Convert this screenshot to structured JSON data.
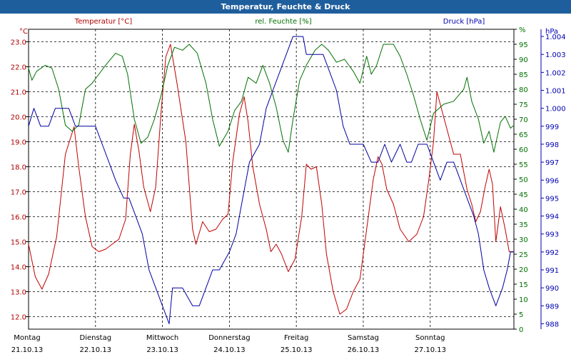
{
  "title": "Temperatur, Feuchte & Druck",
  "chart_data": {
    "type": "line",
    "title": "Temperatur, Feuchte & Druck",
    "x_days": [
      {
        "day": "Montag",
        "date": "21.10.13"
      },
      {
        "day": "Dienstag",
        "date": "22.10.13"
      },
      {
        "day": "Mittwoch",
        "date": "23.10.13"
      },
      {
        "day": "Donnerstag",
        "date": "24.10.13"
      },
      {
        "day": "Freitag",
        "date": "25.10.13"
      },
      {
        "day": "Samstag",
        "date": "26.10.13"
      },
      {
        "day": "Sonntag",
        "date": "27.10.13"
      }
    ],
    "xlim": [
      0,
      7.25
    ],
    "axes": {
      "temperature": {
        "label": "Temperatur [°C]",
        "unit": "°C",
        "ylim": [
          11.5,
          23.5
        ],
        "ticks": [
          "12.0",
          "13.0",
          "14.0",
          "15.0",
          "16.0",
          "17.0",
          "18.0",
          "19.0",
          "20.0",
          "21.0",
          "22.0",
          "23.0"
        ],
        "color": "#b00000"
      },
      "humidity": {
        "label": "rel. Feuchte [%]",
        "unit": "%",
        "ylim": [
          0,
          100
        ],
        "ticks": [
          "0",
          "5",
          "10",
          "15",
          "20",
          "25",
          "30",
          "35",
          "40",
          "45",
          "50",
          "55",
          "60",
          "65",
          "70",
          "75",
          "80",
          "85",
          "90",
          "95",
          "%"
        ],
        "color": "#007000"
      },
      "pressure": {
        "label": "Druck [hPa]",
        "unit": "hPa",
        "ylim": [
          987.7,
          1004.4
        ],
        "ticks": [
          "988",
          "989",
          "990",
          "991",
          "992",
          "993",
          "994",
          "995",
          "996",
          "997",
          "998",
          "999",
          "1.000",
          "1.001",
          "1.002",
          "1.003",
          "1.004"
        ],
        "color": "#0000b0"
      }
    },
    "series": [
      {
        "name": "Temperatur [°C]",
        "axis": "temperature",
        "color": "#c00000",
        "points": [
          [
            0,
            14.9
          ],
          [
            0.1,
            13.6
          ],
          [
            0.2,
            13.1
          ],
          [
            0.3,
            13.7
          ],
          [
            0.42,
            15.2
          ],
          [
            0.55,
            18.5
          ],
          [
            0.68,
            19.6
          ],
          [
            0.75,
            18.0
          ],
          [
            0.85,
            16.0
          ],
          [
            0.95,
            14.8
          ],
          [
            1.05,
            14.6
          ],
          [
            1.15,
            14.7
          ],
          [
            1.25,
            14.9
          ],
          [
            1.35,
            15.1
          ],
          [
            1.45,
            15.9
          ],
          [
            1.52,
            18.5
          ],
          [
            1.58,
            19.7
          ],
          [
            1.65,
            18.6
          ],
          [
            1.72,
            17.2
          ],
          [
            1.82,
            16.2
          ],
          [
            1.9,
            17.2
          ],
          [
            1.98,
            20.2
          ],
          [
            2.05,
            22.4
          ],
          [
            2.12,
            22.9
          ],
          [
            2.22,
            21.3
          ],
          [
            2.35,
            19.0
          ],
          [
            2.45,
            15.5
          ],
          [
            2.5,
            14.9
          ],
          [
            2.6,
            15.8
          ],
          [
            2.7,
            15.4
          ],
          [
            2.8,
            15.5
          ],
          [
            2.9,
            15.9
          ],
          [
            2.98,
            16.1
          ],
          [
            3.05,
            18.2
          ],
          [
            3.15,
            20.1
          ],
          [
            3.22,
            20.8
          ],
          [
            3.28,
            19.8
          ],
          [
            3.35,
            18.0
          ],
          [
            3.45,
            16.5
          ],
          [
            3.55,
            15.5
          ],
          [
            3.62,
            14.6
          ],
          [
            3.7,
            14.9
          ],
          [
            3.78,
            14.5
          ],
          [
            3.88,
            13.8
          ],
          [
            3.98,
            14.3
          ],
          [
            4.08,
            16.0
          ],
          [
            4.15,
            18.1
          ],
          [
            4.22,
            17.9
          ],
          [
            4.3,
            18.0
          ],
          [
            4.38,
            16.5
          ],
          [
            4.45,
            14.5
          ],
          [
            4.55,
            13.0
          ],
          [
            4.65,
            12.1
          ],
          [
            4.75,
            12.3
          ],
          [
            4.85,
            13.0
          ],
          [
            4.95,
            13.5
          ],
          [
            5.05,
            15.5
          ],
          [
            5.15,
            17.5
          ],
          [
            5.22,
            18.4
          ],
          [
            5.28,
            18.1
          ],
          [
            5.35,
            17.1
          ],
          [
            5.45,
            16.5
          ],
          [
            5.55,
            15.5
          ],
          [
            5.68,
            15.0
          ],
          [
            5.8,
            15.3
          ],
          [
            5.9,
            16.0
          ],
          [
            5.98,
            17.5
          ],
          [
            6.05,
            19.0
          ],
          [
            6.1,
            21.0
          ],
          [
            6.15,
            20.5
          ],
          [
            6.25,
            19.5
          ],
          [
            6.35,
            18.5
          ],
          [
            6.45,
            18.5
          ],
          [
            6.55,
            17.1
          ],
          [
            6.62,
            16.5
          ],
          [
            6.68,
            15.8
          ],
          [
            6.75,
            16.2
          ],
          [
            6.82,
            17.2
          ],
          [
            6.88,
            17.9
          ],
          [
            6.93,
            17.3
          ],
          [
            6.98,
            15.0
          ],
          [
            7.05,
            16.4
          ],
          [
            7.12,
            15.5
          ],
          [
            7.18,
            14.6
          ],
          [
            7.25,
            14.6
          ]
        ]
      },
      {
        "name": "rel. Feuchte [%]",
        "axis": "humidity",
        "color": "#007000",
        "points": [
          [
            0,
            87
          ],
          [
            0.05,
            83
          ],
          [
            0.12,
            86
          ],
          [
            0.25,
            88
          ],
          [
            0.35,
            87
          ],
          [
            0.45,
            80
          ],
          [
            0.55,
            68
          ],
          [
            0.65,
            66
          ],
          [
            0.75,
            68
          ],
          [
            0.85,
            80
          ],
          [
            0.95,
            82
          ],
          [
            1.05,
            85
          ],
          [
            1.15,
            88
          ],
          [
            1.3,
            92
          ],
          [
            1.4,
            91
          ],
          [
            1.48,
            85
          ],
          [
            1.58,
            70
          ],
          [
            1.68,
            62
          ],
          [
            1.78,
            64
          ],
          [
            1.88,
            70
          ],
          [
            1.98,
            78
          ],
          [
            2.08,
            88
          ],
          [
            2.18,
            94
          ],
          [
            2.3,
            93
          ],
          [
            2.4,
            95
          ],
          [
            2.52,
            92
          ],
          [
            2.65,
            82
          ],
          [
            2.75,
            70
          ],
          [
            2.85,
            61
          ],
          [
            2.98,
            66
          ],
          [
            3.08,
            73
          ],
          [
            3.18,
            76
          ],
          [
            3.28,
            84
          ],
          [
            3.4,
            82
          ],
          [
            3.5,
            88
          ],
          [
            3.6,
            82
          ],
          [
            3.7,
            74
          ],
          [
            3.8,
            63
          ],
          [
            3.88,
            59
          ],
          [
            3.95,
            70
          ],
          [
            4.05,
            83
          ],
          [
            4.15,
            88
          ],
          [
            4.28,
            93
          ],
          [
            4.38,
            95
          ],
          [
            4.48,
            93
          ],
          [
            4.6,
            89
          ],
          [
            4.72,
            90
          ],
          [
            4.85,
            86
          ],
          [
            4.95,
            82
          ],
          [
            5.05,
            91
          ],
          [
            5.12,
            85
          ],
          [
            5.2,
            88
          ],
          [
            5.3,
            95
          ],
          [
            5.45,
            95
          ],
          [
            5.55,
            91
          ],
          [
            5.65,
            85
          ],
          [
            5.75,
            78
          ],
          [
            5.85,
            70
          ],
          [
            5.95,
            63
          ],
          [
            6.05,
            72
          ],
          [
            6.2,
            75
          ],
          [
            6.35,
            76
          ],
          [
            6.5,
            80
          ],
          [
            6.55,
            84
          ],
          [
            6.62,
            76
          ],
          [
            6.72,
            70
          ],
          [
            6.8,
            62
          ],
          [
            6.88,
            66
          ],
          [
            6.95,
            59
          ],
          [
            7.05,
            69
          ],
          [
            7.12,
            71
          ],
          [
            7.2,
            67
          ],
          [
            7.25,
            68
          ]
        ]
      },
      {
        "name": "Druck [hPa]",
        "axis": "pressure",
        "color": "#0000a0",
        "points": [
          [
            0,
            999
          ],
          [
            0.08,
            1000
          ],
          [
            0.18,
            999
          ],
          [
            0.3,
            999
          ],
          [
            0.4,
            1000
          ],
          [
            0.6,
            1000
          ],
          [
            0.7,
            999
          ],
          [
            0.8,
            999
          ],
          [
            1,
            999
          ],
          [
            1.1,
            998
          ],
          [
            1.2,
            997
          ],
          [
            1.3,
            996
          ],
          [
            1.42,
            995
          ],
          [
            1.5,
            995
          ],
          [
            1.6,
            994
          ],
          [
            1.7,
            993
          ],
          [
            1.8,
            991
          ],
          [
            1.9,
            990
          ],
          [
            2,
            989
          ],
          [
            2.1,
            988
          ],
          [
            2.15,
            990
          ],
          [
            2.3,
            990
          ],
          [
            2.45,
            989
          ],
          [
            2.55,
            989
          ],
          [
            2.65,
            990
          ],
          [
            2.75,
            991
          ],
          [
            2.85,
            991
          ],
          [
            3,
            992
          ],
          [
            3.1,
            993
          ],
          [
            3.2,
            995
          ],
          [
            3.3,
            997
          ],
          [
            3.45,
            998
          ],
          [
            3.55,
            1000
          ],
          [
            3.65,
            1001
          ],
          [
            3.75,
            1002
          ],
          [
            3.85,
            1003
          ],
          [
            3.95,
            1004
          ],
          [
            4.1,
            1004
          ],
          [
            4.15,
            1003
          ],
          [
            4.25,
            1003
          ],
          [
            4.4,
            1003
          ],
          [
            4.5,
            1002
          ],
          [
            4.6,
            1001
          ],
          [
            4.7,
            999
          ],
          [
            4.8,
            998
          ],
          [
            5,
            998
          ],
          [
            5.12,
            997
          ],
          [
            5.22,
            997
          ],
          [
            5.32,
            998
          ],
          [
            5.42,
            997
          ],
          [
            5.55,
            998
          ],
          [
            5.65,
            997
          ],
          [
            5.72,
            997
          ],
          [
            5.82,
            998
          ],
          [
            5.95,
            998
          ],
          [
            6.05,
            997
          ],
          [
            6.15,
            996
          ],
          [
            6.25,
            997
          ],
          [
            6.35,
            997
          ],
          [
            6.45,
            996
          ],
          [
            6.55,
            995
          ],
          [
            6.65,
            994
          ],
          [
            6.72,
            993
          ],
          [
            6.8,
            991
          ],
          [
            6.88,
            990
          ],
          [
            6.98,
            989
          ],
          [
            7.08,
            990
          ],
          [
            7.15,
            991
          ],
          [
            7.2,
            992
          ],
          [
            7.25,
            992
          ]
        ]
      }
    ]
  }
}
